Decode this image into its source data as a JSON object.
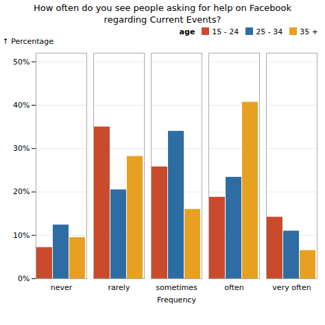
{
  "chart_data": {
    "type": "bar",
    "title": "How often do you see people asking for help on Facebook\nregarding Current Events?",
    "xlabel": "Frequency",
    "ylabel": "Percentage",
    "categories": [
      "never",
      "rarely",
      "sometimes",
      "often",
      "very often"
    ],
    "series": [
      {
        "name": "15 - 24",
        "color": "#C94B2B",
        "values": [
          7.2,
          35.0,
          25.8,
          18.8,
          14.2
        ]
      },
      {
        "name": "25 - 34",
        "color": "#2E6DA4",
        "values": [
          12.4,
          20.5,
          34.0,
          23.4,
          11.0
        ]
      },
      {
        "name": "35 +",
        "color": "#E8A020",
        "values": [
          9.5,
          28.2,
          16.0,
          40.7,
          6.5
        ]
      }
    ],
    "ylim": [
      0,
      52
    ],
    "yticks": [
      {
        "value": 0,
        "label": "0%"
      },
      {
        "value": 10,
        "label": "10%"
      },
      {
        "value": 20,
        "label": "20%"
      },
      {
        "value": 30,
        "label": "30%"
      },
      {
        "value": 40,
        "label": "40%"
      },
      {
        "value": 50,
        "label": "50%"
      }
    ],
    "grid": true,
    "legend": "upper right",
    "legend_title": "age"
  }
}
